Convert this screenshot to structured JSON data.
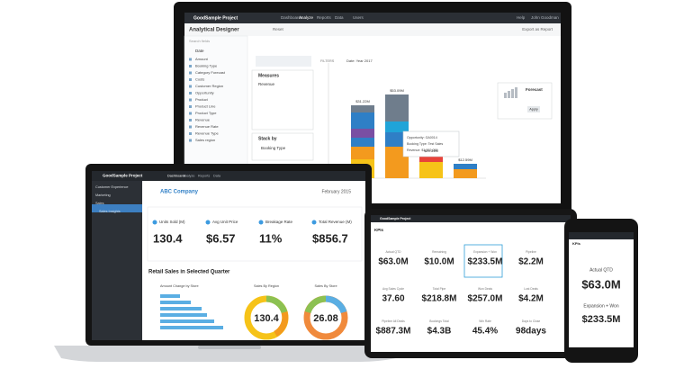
{
  "desktop": {
    "project": "GoodSample Project",
    "nav": [
      "Dashboards",
      "Analyze",
      "Reports",
      "Data",
      "Users"
    ],
    "help": "Help",
    "user": "John Goodman",
    "designer_title": "Analytical Designer",
    "reset": "Reset",
    "export": "Export as Report",
    "search": "Search fields",
    "date": "Date",
    "fields": [
      "Amount",
      "Booking Type",
      "Category Forecast",
      "Costs",
      "Customer Region",
      "Opportunity",
      "Product",
      "Product Line",
      "Product Type",
      "Revenue",
      "Revenue Rate",
      "Revenue Type",
      "Sales region"
    ],
    "measures_title": "Measures",
    "measure": "Revenue",
    "stack_title": "Stack by",
    "stack": "Booking Type",
    "filter_label": "FILTERS",
    "filter_date": "Date: Year 2017",
    "bar_labels": [
      "$31.22M",
      "$53.09M",
      "$20.34M",
      "$12.59M"
    ],
    "tooltip": [
      "Opportunity: GA0014",
      "Booking Type: Test Sales",
      "Revenue: $1,202,058"
    ],
    "forecast": "Forecast",
    "apply": "Apply"
  },
  "laptop": {
    "project": "GoodSample Project",
    "nav": [
      "Dashboards",
      "Analyze",
      "Reports",
      "Data"
    ],
    "sidebar": [
      "Customer Experience",
      "Marketing",
      "Sales",
      "Sales Insights"
    ],
    "company": "ABC Company",
    "period": "February 2015",
    "kpis": [
      {
        "label": "Units Sold (M)",
        "value": "130.4"
      },
      {
        "label": "Avg Unit Price",
        "value": "$6.57"
      },
      {
        "label": "Breakage Rate",
        "value": "11%"
      },
      {
        "label": "Total Revenue (M)",
        "value": "$856.7"
      }
    ],
    "section": "Retail Sales in Selected Quarter",
    "panels": [
      "Amount Change by Store",
      "Sales By Region",
      "Sales By Store"
    ],
    "donuts": [
      "130.4",
      "26.08"
    ]
  },
  "tablet": {
    "project": "GoodSample Project",
    "title": "KPIs",
    "kpis": [
      {
        "label": "Actual QTD",
        "value": "$63.0M"
      },
      {
        "label": "Remaining",
        "value": "$10.0M"
      },
      {
        "label": "Expansion + Won",
        "value": "$233.5M"
      },
      {
        "label": "Pipeline",
        "value": "$2.2M"
      },
      {
        "label": "Avg Sales Cycle",
        "value": "37.60"
      },
      {
        "label": "Total Pipe",
        "value": "$218.8M"
      },
      {
        "label": "Won Deals",
        "value": "$257.0M"
      },
      {
        "label": "Lost Deals",
        "value": "$4.2M"
      },
      {
        "label": "Pipeline All Deals",
        "value": "$887.3M"
      },
      {
        "label": "Bookings Total",
        "value": "$4.3B"
      },
      {
        "label": "Win Rate",
        "value": "45.4%"
      },
      {
        "label": "Days to Close",
        "value": "98days"
      }
    ]
  },
  "phone": {
    "title": "KPIs",
    "kpis": [
      {
        "label": "Actual QTD",
        "value": "$63.0M"
      },
      {
        "label": "Expansion + Won",
        "value": "$233.5M"
      }
    ]
  }
}
